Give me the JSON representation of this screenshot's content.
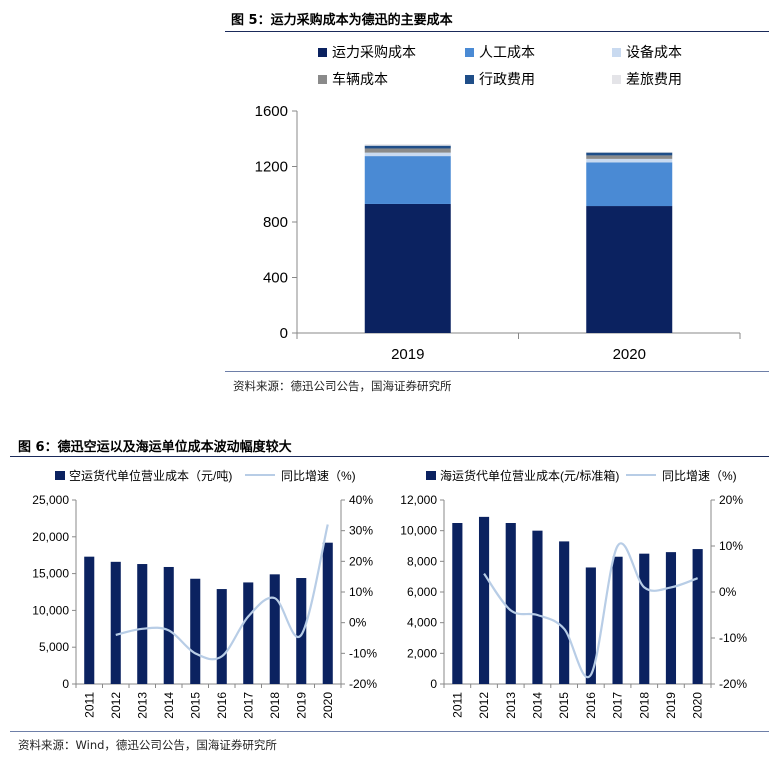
{
  "figure5": {
    "title": "图 5：运力采购成本为德迅的主要成本",
    "source": "资料来源：德迅公司公告，国海证券研究所"
  },
  "figure6": {
    "title": "图 6：德迅空运以及海运单位成本波动幅度较大",
    "source": "资料来源：Wind，德迅公司公告，国海证券研究所"
  },
  "colors": {
    "navy": "#0b2260",
    "mid_blue": "#4a8ad4",
    "light_blue": "#c9daf0",
    "gray": "#8a8a8a",
    "dark_blue": "#1f4e88",
    "pale_gray": "#e4e4e8",
    "growth_line": "#b8cde6",
    "rule": "#1a2a5a"
  },
  "chart_data": [
    {
      "type": "bar",
      "stacked": true,
      "categories": [
        "2019",
        "2020"
      ],
      "series": [
        {
          "name": "运力采购成本",
          "color": "#0b2260",
          "values": [
            930,
            915
          ]
        },
        {
          "name": "人工成本",
          "color": "#4a8ad4",
          "values": [
            345,
            315
          ]
        },
        {
          "name": "设备成本",
          "color": "#c9daf0",
          "values": [
            25,
            25
          ]
        },
        {
          "name": "车辆成本",
          "color": "#8a8a8a",
          "values": [
            30,
            25
          ]
        },
        {
          "name": "行政费用",
          "color": "#1f4e88",
          "values": [
            20,
            20
          ]
        },
        {
          "name": "差旅费用",
          "color": "#e4e4e8",
          "values": [
            10,
            5
          ]
        }
      ],
      "ylim": [
        0,
        1600
      ],
      "yticks": [
        "0",
        "400",
        "800",
        "1200",
        "1600"
      ],
      "legend": "top"
    },
    {
      "type": "bar",
      "categories": [
        "2011",
        "2012",
        "2013",
        "2014",
        "2015",
        "2016",
        "2017",
        "2018",
        "2019",
        "2020"
      ],
      "series": [
        {
          "name": "空运货代单位营业成本（元/吨)",
          "axis": "left",
          "color": "#0b2260",
          "values": [
            17300,
            16600,
            16300,
            15900,
            14300,
            12900,
            13800,
            14900,
            14400,
            19200
          ]
        },
        {
          "name": "同比增速（%)",
          "axis": "right",
          "type": "line",
          "color": "#b8cde6",
          "values": [
            null,
            -4,
            -2,
            -2.5,
            -10,
            -11,
            2,
            8,
            -4,
            32
          ]
        }
      ],
      "ylim": [
        0,
        25000
      ],
      "yticks": [
        "0",
        "5,000",
        "10,000",
        "15,000",
        "20,000",
        "25,000"
      ],
      "y2lim": [
        -20,
        40
      ],
      "y2ticks": [
        "-20%",
        "-10%",
        "0%",
        "10%",
        "20%",
        "30%",
        "40%"
      ],
      "legend": "top"
    },
    {
      "type": "bar",
      "categories": [
        "2011",
        "2012",
        "2013",
        "2014",
        "2015",
        "2016",
        "2017",
        "2018",
        "2019",
        "2020"
      ],
      "series": [
        {
          "name": "海运货代单位营业成本(元/标准箱)",
          "axis": "left",
          "color": "#0b2260",
          "values": [
            10500,
            10900,
            10500,
            10000,
            9300,
            7600,
            8300,
            8500,
            8600,
            8800
          ]
        },
        {
          "name": "同比增速（%)",
          "axis": "right",
          "type": "line",
          "color": "#b8cde6",
          "values": [
            null,
            4,
            -4,
            -5,
            -8,
            -18,
            10,
            1,
            1,
            3
          ]
        }
      ],
      "ylim": [
        0,
        12000
      ],
      "yticks": [
        "0",
        "2,000",
        "4,000",
        "6,000",
        "8,000",
        "10,000",
        "12,000"
      ],
      "y2lim": [
        -20,
        20
      ],
      "y2ticks": [
        "-20%",
        "-10%",
        "0%",
        "10%",
        "20%"
      ],
      "legend": "top"
    }
  ]
}
